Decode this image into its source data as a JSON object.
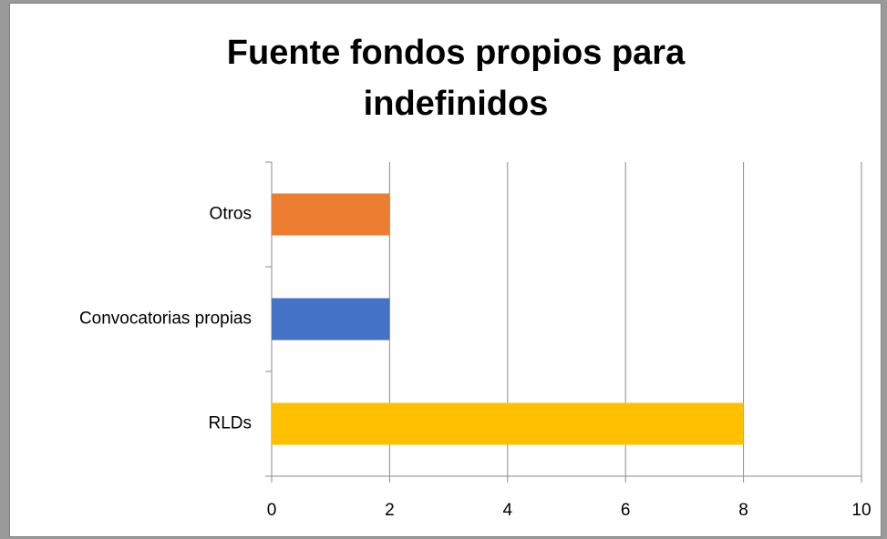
{
  "chart_data": {
    "type": "bar",
    "orientation": "horizontal",
    "title": "Fuente fondos propios para indefinidos",
    "categories": [
      "RLDs",
      "Convocatorias propias",
      "Otros"
    ],
    "values": [
      8,
      2,
      2
    ],
    "colors": [
      "#ffc000",
      "#4472c4",
      "#ed7d31"
    ],
    "xlim": [
      0,
      10
    ],
    "xticks": [
      0,
      2,
      4,
      6,
      8,
      10
    ],
    "grid": true
  }
}
